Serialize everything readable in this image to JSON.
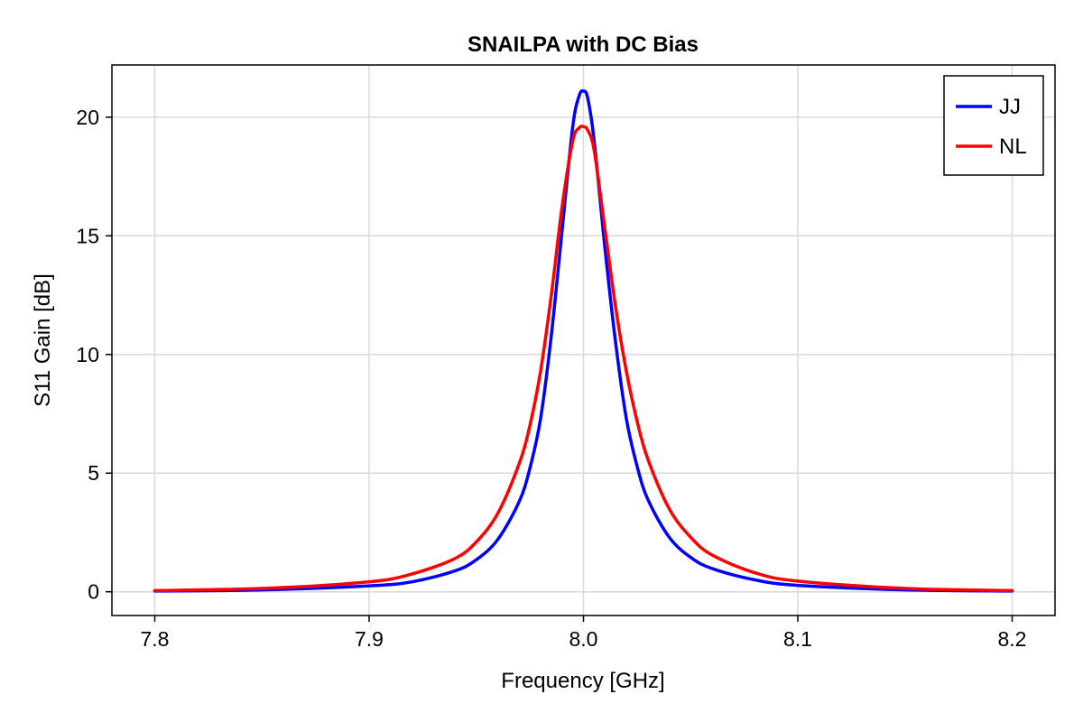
{
  "chart_data": {
    "type": "line",
    "title": "SNAILPA with DC Bias",
    "xlabel": "Frequency [GHz]",
    "ylabel": "S11 Gain [dB]",
    "xlim": [
      7.78,
      8.22
    ],
    "ylim": [
      -1.0,
      22.2
    ],
    "xticks": [
      7.8,
      7.9,
      8.0,
      8.1,
      8.2
    ],
    "xtick_labels": [
      "7.8",
      "7.9",
      "8.0",
      "8.1",
      "8.2"
    ],
    "yticks": [
      0,
      5,
      10,
      15,
      20
    ],
    "ytick_labels": [
      "0",
      "5",
      "10",
      "15",
      "20"
    ],
    "grid": true,
    "legend_position": "top-right",
    "x": [
      7.8,
      7.85,
      7.9,
      7.92,
      7.94,
      7.95,
      7.96,
      7.97,
      7.975,
      7.98,
      7.985,
      7.99,
      7.995,
      7.998,
      8.0,
      8.002,
      8.005,
      8.01,
      8.015,
      8.02,
      8.025,
      8.03,
      8.04,
      8.05,
      8.06,
      8.08,
      8.1,
      8.15,
      8.2
    ],
    "series": [
      {
        "name": "JJ",
        "color": "#0000ff",
        "values": [
          0.03,
          0.08,
          0.25,
          0.42,
          0.88,
          1.35,
          2.2,
          3.8,
          5.2,
          7.3,
          10.8,
          15.2,
          19.6,
          20.9,
          21.1,
          20.8,
          19.0,
          14.5,
          10.5,
          7.3,
          5.3,
          3.9,
          2.3,
          1.45,
          0.98,
          0.5,
          0.27,
          0.08,
          0.03
        ]
      },
      {
        "name": "NL",
        "color": "#ff0000",
        "values": [
          0.05,
          0.14,
          0.42,
          0.75,
          1.4,
          2.1,
          3.3,
          5.4,
          7.0,
          9.3,
          12.5,
          16.2,
          19.0,
          19.55,
          19.6,
          19.45,
          18.6,
          15.3,
          12.0,
          9.3,
          7.2,
          5.6,
          3.5,
          2.3,
          1.55,
          0.8,
          0.45,
          0.14,
          0.05
        ]
      }
    ]
  }
}
